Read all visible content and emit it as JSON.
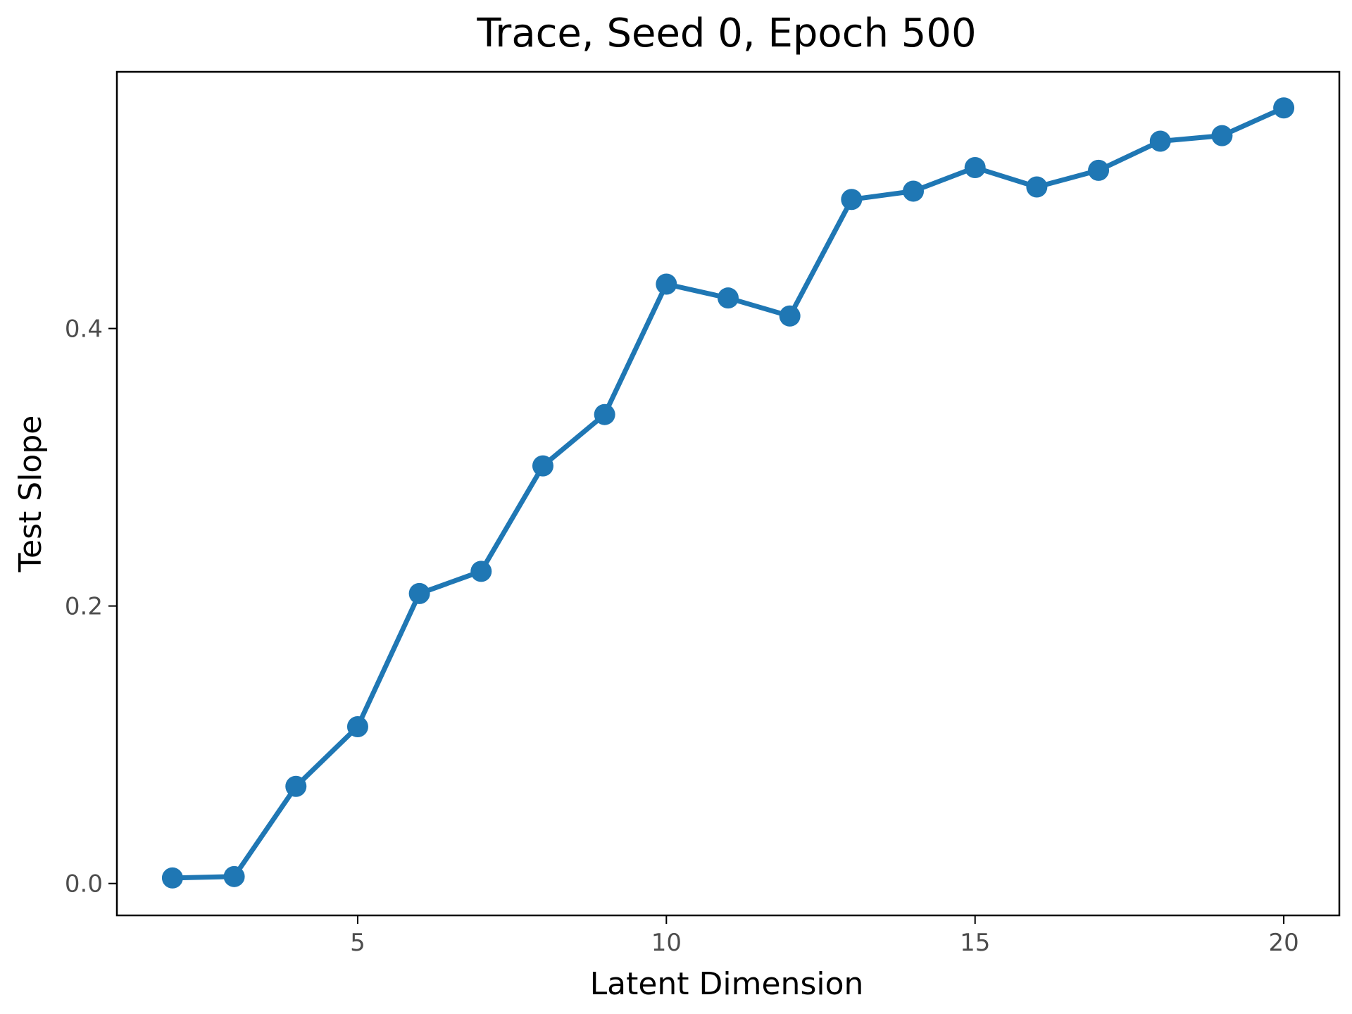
{
  "chart_data": {
    "type": "line",
    "title": "Trace, Seed 0, Epoch 500",
    "xlabel": "Latent Dimension",
    "ylabel": "Test Slope",
    "xlim": [
      1.1,
      20.9
    ],
    "ylim": [
      -0.023,
      0.585
    ],
    "xticks": [
      5,
      10,
      15,
      20
    ],
    "yticks": [
      0.0,
      0.2,
      0.4
    ],
    "xtick_labels": [
      "5",
      "10",
      "15",
      "20"
    ],
    "ytick_labels": [
      "0.0",
      "0.2",
      "0.4"
    ],
    "grid": false,
    "legend": "none",
    "series": [
      {
        "color": "#1f77b4",
        "marker": "circle",
        "x": [
          2,
          3,
          4,
          5,
          6,
          7,
          8,
          9,
          10,
          11,
          12,
          13,
          14,
          15,
          16,
          17,
          18,
          19,
          20
        ],
        "y": [
          0.004,
          0.005,
          0.07,
          0.113,
          0.209,
          0.225,
          0.301,
          0.338,
          0.432,
          0.422,
          0.409,
          0.493,
          0.499,
          0.516,
          0.502,
          0.514,
          0.535,
          0.539,
          0.559
        ]
      }
    ]
  }
}
